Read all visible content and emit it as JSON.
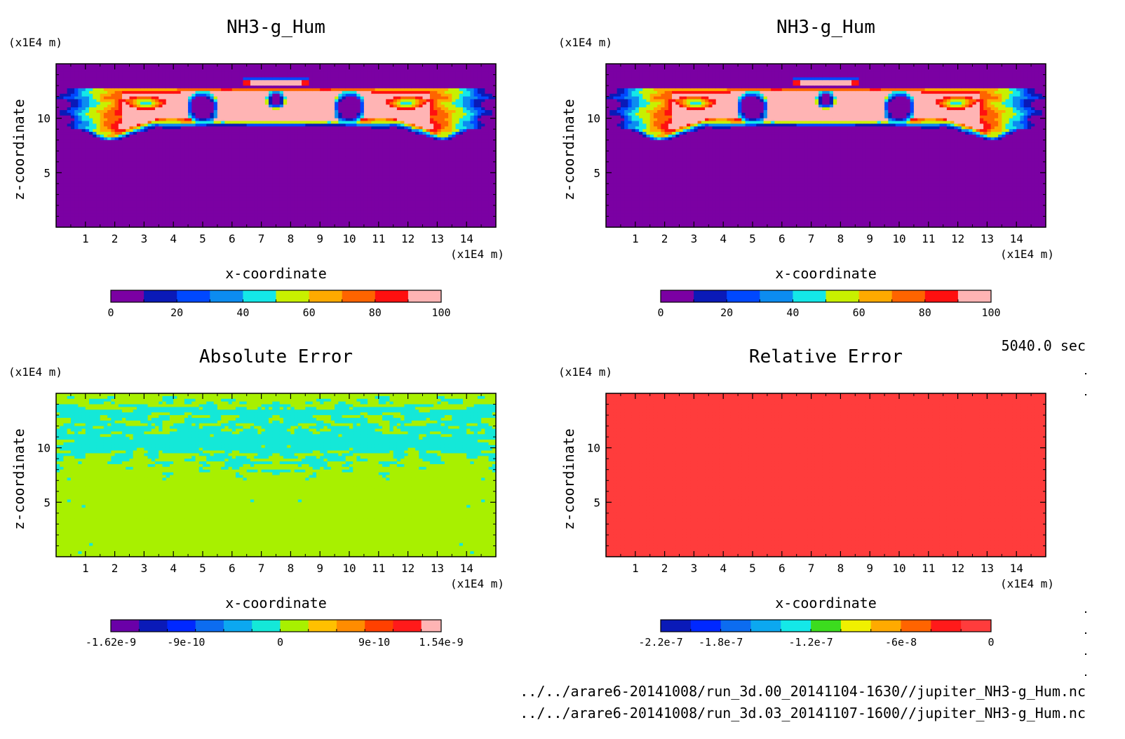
{
  "footer": {
    "time_label": "5040.0 sec",
    "file_a": "../../arare6-20141008/run_3d.00_20141104-1630//jupiter_NH3-g_Hum.nc",
    "file_b": "../../arare6-20141008/run_3d.03_20141107-1600//jupiter_NH3-g_Hum.nc"
  },
  "chart_data": [
    {
      "type": "heatmap",
      "title": "NH3-g_Hum",
      "xlabel": "x-coordinate",
      "ylabel": "z-coordinate",
      "xunit": "(x1E4 m)",
      "yunit": "(x1E4 m)",
      "xlim": [
        0,
        15
      ],
      "ylim": [
        0,
        15
      ],
      "xticks": [
        1,
        2,
        3,
        4,
        5,
        6,
        7,
        8,
        9,
        10,
        11,
        12,
        13,
        14
      ],
      "yticks": [
        5,
        10
      ],
      "field": "humidity",
      "colorbar": {
        "levels": [
          0,
          10,
          20,
          30,
          40,
          50,
          60,
          70,
          80,
          90,
          100
        ],
        "colors": [
          "#7b00a3",
          "#0a1ab8",
          "#0048ff",
          "#0c8cf0",
          "#14e8e8",
          "#c8f000",
          "#ffaa00",
          "#ff6400",
          "#ff1010",
          "#ffb4b4"
        ],
        "tick_labels": [
          "0",
          "20",
          "40",
          "60",
          "80",
          "100"
        ],
        "tick_values": [
          0,
          20,
          40,
          60,
          80,
          100
        ]
      }
    },
    {
      "type": "heatmap",
      "title": "NH3-g_Hum",
      "xlabel": "x-coordinate",
      "ylabel": "z-coordinate",
      "xunit": "(x1E4 m)",
      "yunit": "(x1E4 m)",
      "xlim": [
        0,
        15
      ],
      "ylim": [
        0,
        15
      ],
      "xticks": [
        1,
        2,
        3,
        4,
        5,
        6,
        7,
        8,
        9,
        10,
        11,
        12,
        13,
        14
      ],
      "yticks": [
        5,
        10
      ],
      "field": "humidity",
      "colorbar": {
        "levels": [
          0,
          10,
          20,
          30,
          40,
          50,
          60,
          70,
          80,
          90,
          100
        ],
        "colors": [
          "#7b00a3",
          "#0a1ab8",
          "#0048ff",
          "#0c8cf0",
          "#14e8e8",
          "#c8f000",
          "#ffaa00",
          "#ff6400",
          "#ff1010",
          "#ffb4b4"
        ],
        "tick_labels": [
          "0",
          "20",
          "40",
          "60",
          "80",
          "100"
        ],
        "tick_values": [
          0,
          20,
          40,
          60,
          80,
          100
        ]
      }
    },
    {
      "type": "heatmap",
      "title": "Absolute Error",
      "xlabel": "x-coordinate",
      "ylabel": "z-coordinate",
      "xunit": "(x1E4 m)",
      "yunit": "(x1E4 m)",
      "xlim": [
        0,
        15
      ],
      "ylim": [
        0,
        15
      ],
      "xticks": [
        1,
        2,
        3,
        4,
        5,
        6,
        7,
        8,
        9,
        10,
        11,
        12,
        13,
        14
      ],
      "yticks": [
        5,
        10
      ],
      "field": "abs_error",
      "colorbar": {
        "levels": [
          -1.62e-09,
          -1.35e-09,
          -1.08e-09,
          -8.1e-10,
          -5.4e-10,
          -2.7e-10,
          0,
          2.7e-10,
          5.4e-10,
          8.1e-10,
          1.08e-09,
          1.35e-09,
          1.54e-09
        ],
        "colors": [
          "#6a00a8",
          "#0a1ab8",
          "#0028ff",
          "#0c6cf0",
          "#0ca8f0",
          "#14e8d8",
          "#a8f000",
          "#ffc000",
          "#ff8c00",
          "#ff4000",
          "#ff1a1a",
          "#ffb4b4"
        ],
        "tick_labels": [
          "-1.62e-9",
          "-9e-10",
          "0",
          "9e-10",
          "1.54e-9"
        ],
        "tick_values": [
          -1.62e-09,
          -9e-10,
          0,
          9e-10,
          1.54e-09
        ]
      },
      "dominant_colors": [
        "#a8ff00",
        "#33e6cc"
      ]
    },
    {
      "type": "heatmap",
      "title": "Relative Error",
      "xlabel": "x-coordinate",
      "ylabel": "z-coordinate",
      "xunit": "(x1E4 m)",
      "yunit": "(x1E4 m)",
      "xlim": [
        0,
        15
      ],
      "ylim": [
        0,
        15
      ],
      "xticks": [
        1,
        2,
        3,
        4,
        5,
        6,
        7,
        8,
        9,
        10,
        11,
        12,
        13,
        14
      ],
      "yticks": [
        5,
        10
      ],
      "field": "rel_error",
      "colorbar": {
        "levels": [
          -2.2e-07,
          -2e-07,
          -1.8e-07,
          -1.6e-07,
          -1.4e-07,
          -1.2e-07,
          -1e-07,
          -8e-08,
          -6e-08,
          -4e-08,
          -2e-08,
          0
        ],
        "colors": [
          "#0a1ab8",
          "#0028ff",
          "#0c6cf0",
          "#0ca8f0",
          "#14e8e8",
          "#3cdc1e",
          "#f0f000",
          "#ffaa00",
          "#ff6400",
          "#ff1a1a",
          "#ff3c3c"
        ],
        "tick_labels": [
          "-2.2e-7",
          "-1.8e-7",
          "-1.2e-7",
          "-6e-8",
          "0"
        ],
        "tick_values": [
          -2.2e-07,
          -1.8e-07,
          -1.2e-07,
          -6e-08,
          0
        ]
      },
      "dominant_colors": [
        "#ff4040",
        "#ffaaaa"
      ]
    }
  ]
}
